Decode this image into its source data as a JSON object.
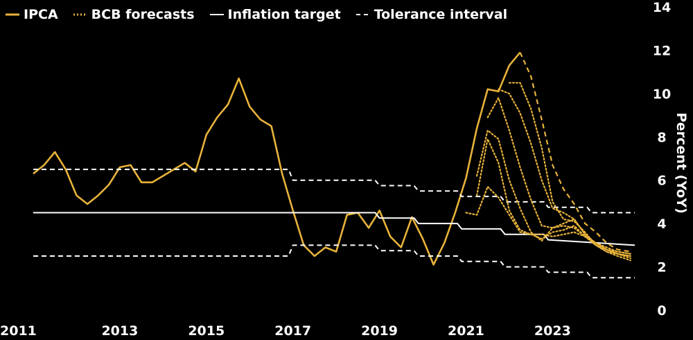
{
  "chart_data": {
    "type": "line",
    "title": "",
    "xlabel": "",
    "ylabel": "Percent (YoY)",
    "xlim": [
      2011,
      2024.9
    ],
    "ylim": [
      0,
      14
    ],
    "x_ticks": [
      "2011",
      "2013",
      "2015",
      "2017",
      "2019",
      "2021",
      "2023"
    ],
    "y_ticks": [
      "0",
      "2",
      "4",
      "6",
      "8",
      "10",
      "12",
      "14"
    ],
    "grid": false,
    "legend_position": "top-left",
    "colors": {
      "ipca": "#E8B33A",
      "forecast": "#E8B33A",
      "target": "#FFFFFF",
      "tolerance": "#FFFFFF",
      "background": "#000000",
      "text": "#FFFFFF"
    },
    "legend": [
      {
        "label": "IPCA",
        "key": "ipca",
        "style": "solid"
      },
      {
        "label": "BCB forecasts",
        "key": "forecast",
        "style": "dotted"
      },
      {
        "label": "Inflation target",
        "key": "target",
        "style": "solid"
      },
      {
        "label": "Tolerance interval",
        "key": "tolerance",
        "style": "dashed"
      }
    ],
    "series": [
      {
        "name": "IPCA",
        "style": "solid",
        "x": [
          2011.0,
          2011.25,
          2011.5,
          2011.75,
          2012.0,
          2012.25,
          2012.5,
          2012.75,
          2013.0,
          2013.25,
          2013.5,
          2013.75,
          2014.0,
          2014.25,
          2014.5,
          2014.75,
          2015.0,
          2015.25,
          2015.5,
          2015.75,
          2016.0,
          2016.25,
          2016.5,
          2016.75,
          2017.0,
          2017.25,
          2017.5,
          2017.75,
          2018.0,
          2018.25,
          2018.5,
          2018.75,
          2019.0,
          2019.25,
          2019.5,
          2019.75,
          2020.0,
          2020.25,
          2020.5,
          2020.75,
          2021.0,
          2021.25,
          2021.5,
          2021.75,
          2022.0,
          2022.25
        ],
        "y": [
          6.3,
          6.7,
          7.3,
          6.5,
          5.3,
          4.9,
          5.3,
          5.8,
          6.6,
          6.7,
          5.9,
          5.9,
          6.2,
          6.5,
          6.8,
          6.4,
          8.1,
          8.9,
          9.5,
          10.7,
          9.4,
          8.8,
          8.5,
          6.3,
          4.6,
          3.0,
          2.5,
          2.9,
          2.7,
          4.4,
          4.5,
          3.8,
          4.6,
          3.4,
          2.9,
          4.3,
          3.3,
          2.1,
          3.1,
          4.5,
          6.1,
          8.4,
          10.2,
          10.1,
          11.3,
          11.9
        ]
      },
      {
        "name": "Inflation target",
        "style": "solid",
        "x": [
          2011.0,
          2018.9,
          2019.0,
          2019.8,
          2019.9,
          2020.8,
          2020.9,
          2021.8,
          2021.9,
          2022.8,
          2022.9,
          2024.9
        ],
        "y": [
          4.5,
          4.5,
          4.25,
          4.25,
          4.0,
          4.0,
          3.75,
          3.75,
          3.5,
          3.5,
          3.25,
          3.0
        ]
      },
      {
        "name": "Tolerance upper",
        "style": "dashed",
        "x": [
          2011.0,
          2016.9,
          2017.0,
          2018.9,
          2019.0,
          2019.8,
          2019.9,
          2020.8,
          2020.9,
          2021.8,
          2021.9,
          2022.8,
          2022.9,
          2023.8,
          2023.9,
          2024.9
        ],
        "y": [
          6.5,
          6.5,
          6.0,
          6.0,
          5.75,
          5.75,
          5.5,
          5.5,
          5.25,
          5.25,
          5.0,
          5.0,
          4.75,
          4.75,
          4.5,
          4.5
        ]
      },
      {
        "name": "Tolerance lower",
        "style": "dashed",
        "x": [
          2011.0,
          2016.9,
          2017.0,
          2018.9,
          2019.0,
          2019.8,
          2019.9,
          2020.8,
          2020.9,
          2021.8,
          2021.9,
          2022.8,
          2022.9,
          2023.8,
          2023.9,
          2024.9
        ],
        "y": [
          2.5,
          2.5,
          3.0,
          3.0,
          2.75,
          2.75,
          2.5,
          2.5,
          2.25,
          2.25,
          2.0,
          2.0,
          1.75,
          1.75,
          1.5,
          1.5
        ]
      },
      {
        "name": "BCB forecast 1",
        "style": "dotted",
        "x": [
          2021.0,
          2021.25,
          2021.5,
          2021.75,
          2022.0,
          2022.25,
          2022.5,
          2022.75,
          2023.0,
          2023.25,
          2023.5,
          2023.75,
          2024.0,
          2024.25,
          2024.5,
          2024.8
        ],
        "y": [
          4.5,
          4.4,
          5.7,
          5.2,
          4.4,
          3.6,
          3.5,
          3.5,
          3.4,
          3.5,
          3.6,
          3.4,
          3.1,
          2.9,
          2.7,
          2.6
        ]
      },
      {
        "name": "BCB forecast 2",
        "style": "dotted",
        "x": [
          2021.25,
          2021.5,
          2021.75,
          2022.0,
          2022.25,
          2022.5,
          2022.75,
          2023.0,
          2023.25,
          2023.5,
          2023.75,
          2024.0,
          2024.25,
          2024.5,
          2024.8
        ],
        "y": [
          5.3,
          7.9,
          6.8,
          4.6,
          3.7,
          3.5,
          3.3,
          3.6,
          3.7,
          3.9,
          3.4,
          3.0,
          2.8,
          2.7,
          2.6
        ]
      },
      {
        "name": "BCB forecast 3",
        "style": "dotted",
        "x": [
          2021.25,
          2021.5,
          2021.75,
          2022.0,
          2022.25,
          2022.5,
          2022.75,
          2023.0,
          2023.25,
          2023.5,
          2023.75,
          2024.0,
          2024.25,
          2024.5,
          2024.8
        ],
        "y": [
          6.2,
          8.3,
          7.9,
          6.0,
          4.7,
          3.6,
          3.2,
          3.8,
          4.0,
          4.2,
          3.5,
          3.0,
          2.7,
          2.6,
          2.5
        ]
      },
      {
        "name": "BCB forecast 4",
        "style": "dotted",
        "x": [
          2021.5,
          2021.75,
          2022.0,
          2022.25,
          2022.5,
          2022.75,
          2023.0,
          2023.25,
          2023.5,
          2023.75,
          2024.0,
          2024.25,
          2024.5,
          2024.8
        ],
        "y": [
          8.9,
          9.8,
          8.3,
          6.6,
          5.1,
          3.9,
          3.8,
          3.9,
          3.8,
          3.4,
          3.1,
          2.8,
          2.6,
          2.5
        ]
      },
      {
        "name": "BCB forecast 5",
        "style": "dotted",
        "x": [
          2021.75,
          2022.0,
          2022.25,
          2022.5,
          2022.75,
          2023.0,
          2023.25,
          2023.5,
          2023.75,
          2024.0,
          2024.25,
          2024.5,
          2024.8
        ],
        "y": [
          10.2,
          10.0,
          9.1,
          7.7,
          6.0,
          4.7,
          4.5,
          4.2,
          3.5,
          3.1,
          2.8,
          2.6,
          2.4
        ]
      },
      {
        "name": "BCB forecast 6",
        "style": "dotted",
        "x": [
          2022.0,
          2022.25,
          2022.5,
          2022.75,
          2023.0,
          2023.25,
          2023.5,
          2023.75,
          2024.0,
          2024.25,
          2024.5,
          2024.8
        ],
        "y": [
          10.5,
          10.5,
          9.3,
          7.5,
          5.0,
          4.2,
          4.1,
          3.6,
          3.0,
          2.7,
          2.5,
          2.3
        ]
      },
      {
        "name": "BCB forecast 7",
        "style": "dashed",
        "x": [
          2022.25,
          2022.5,
          2022.75,
          2023.0,
          2023.25,
          2023.5,
          2023.75,
          2024.0,
          2024.25,
          2024.5,
          2024.8
        ],
        "y": [
          11.9,
          10.8,
          8.8,
          6.7,
          5.6,
          4.9,
          4.0,
          3.6,
          3.1,
          2.8,
          2.7
        ]
      }
    ]
  }
}
